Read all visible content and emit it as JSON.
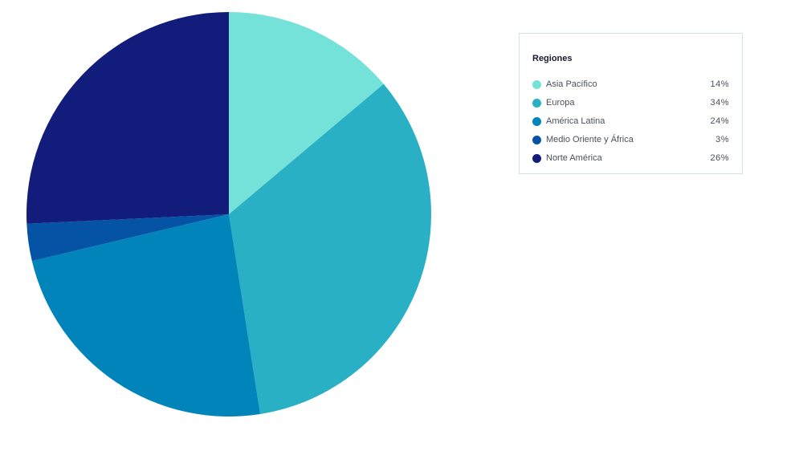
{
  "chart_data": {
    "type": "pie",
    "title": "",
    "legend": {
      "title": "Regiones",
      "placement": "right"
    },
    "slices": [
      {
        "label": "Asia Pacífico",
        "value": 14,
        "display": "14%",
        "color": "#74e2d9"
      },
      {
        "label": "Europa",
        "value": 34,
        "display": "34%",
        "color": "#2ab0c4"
      },
      {
        "label": "América Latina",
        "value": 24,
        "display": "24%",
        "color": "#0184ba"
      },
      {
        "label": "Medio Oriente y África",
        "value": 3,
        "display": "3%",
        "color": "#0553a5"
      },
      {
        "label": "Norte América",
        "value": 26,
        "display": "26%",
        "color": "#111c7b"
      }
    ],
    "start": "12 o'clock",
    "direction": "clockwise"
  }
}
